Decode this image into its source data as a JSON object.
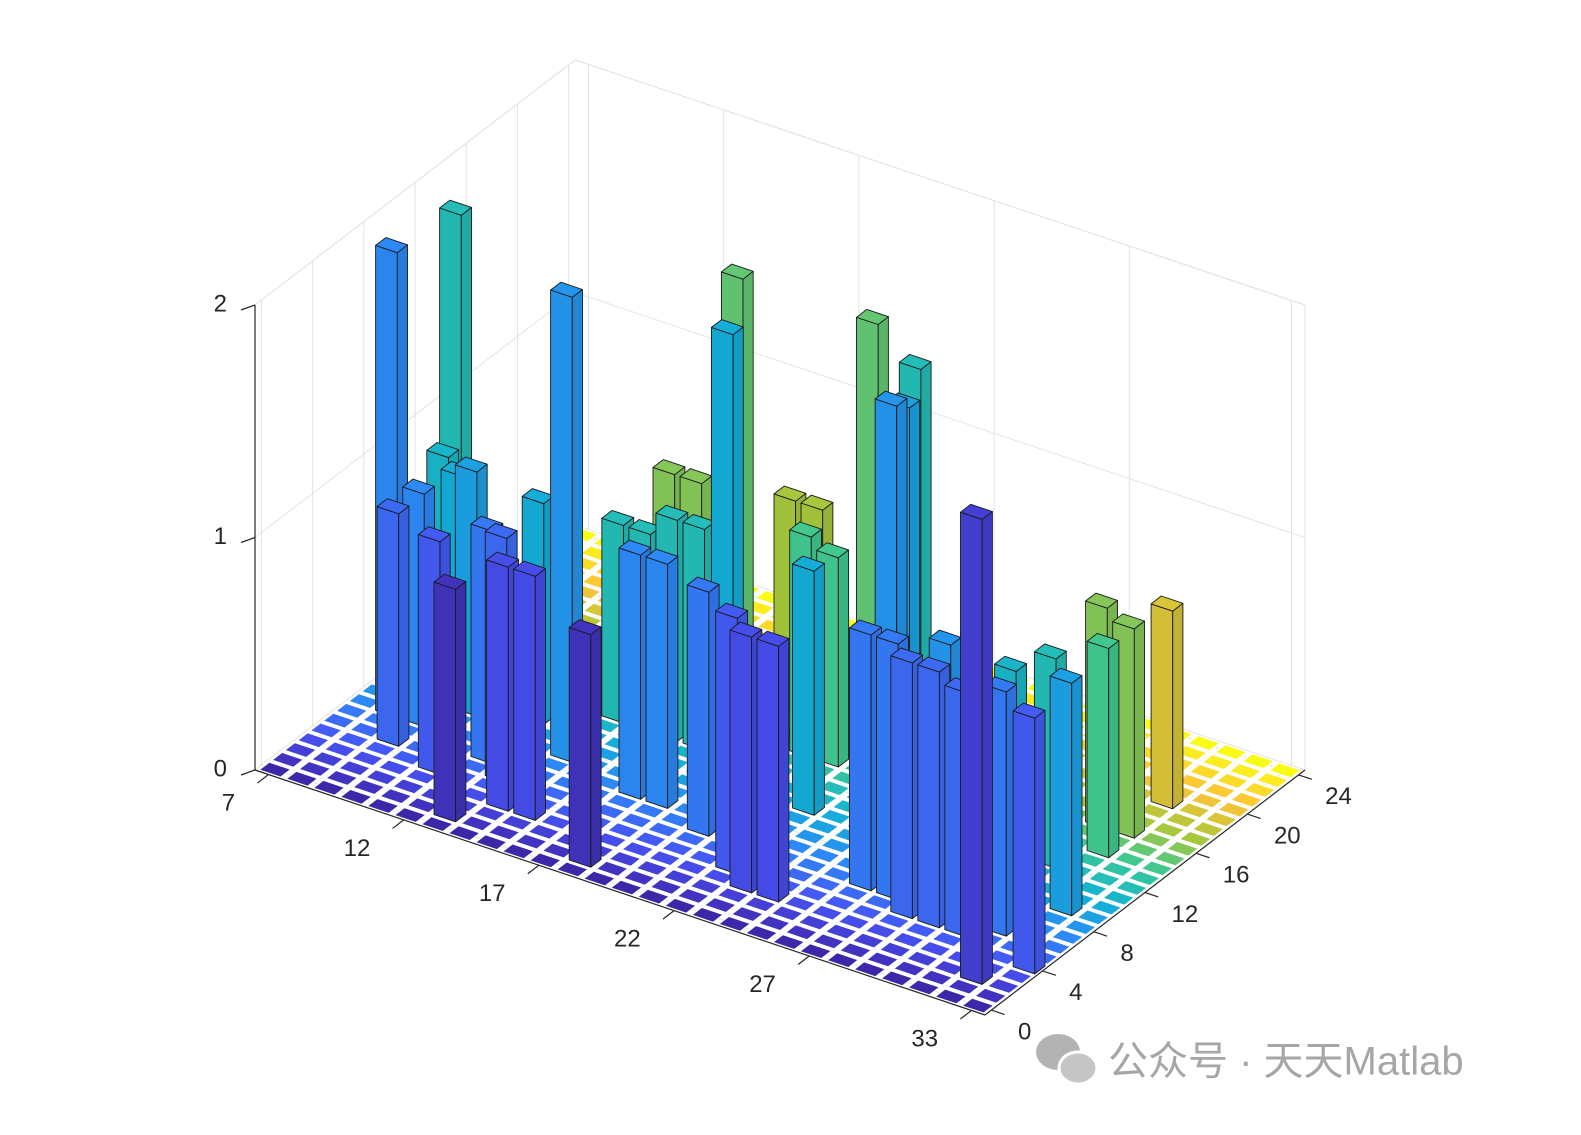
{
  "chart_data": {
    "type": "bar3d",
    "colormap": "parula",
    "x": [
      7,
      8,
      9,
      10,
      11,
      12,
      13,
      14,
      15,
      16,
      17,
      18,
      19,
      20,
      21,
      22,
      23,
      24,
      25,
      26,
      27,
      28,
      29,
      30,
      31,
      32,
      33
    ],
    "y": [
      0,
      1,
      2,
      3,
      4,
      5,
      6,
      7,
      8,
      9,
      10,
      11,
      12,
      13,
      14,
      15,
      16,
      17,
      18,
      19,
      20,
      21,
      22,
      23,
      24
    ],
    "values": [
      [
        0,
        0,
        0,
        0,
        0,
        0,
        0,
        0,
        0,
        0,
        0,
        0,
        0,
        0,
        0,
        0,
        0,
        0,
        0,
        0,
        0,
        0,
        0,
        0,
        0,
        0,
        0
      ],
      [
        0,
        0,
        0,
        0,
        0,
        0,
        1,
        0,
        0,
        0,
        0,
        1,
        0,
        0,
        0,
        0,
        0,
        0,
        0,
        0,
        0,
        0,
        0,
        0,
        0,
        0,
        0
      ],
      [
        0,
        0,
        0,
        0,
        0,
        0,
        0,
        0,
        0,
        0,
        0,
        0,
        0,
        0,
        0,
        0,
        0,
        0,
        0,
        0,
        0,
        0,
        0,
        0,
        0,
        2,
        0
      ],
      [
        0,
        0,
        0,
        0,
        0,
        0,
        0,
        1.05,
        1.05,
        0,
        0,
        0,
        0,
        0,
        0,
        0,
        1.1,
        1.1,
        0,
        0,
        0,
        0,
        0,
        0,
        0,
        0,
        0
      ],
      [
        0,
        0,
        0,
        0,
        1,
        0,
        0,
        0,
        0,
        0,
        0,
        0,
        0,
        0,
        0,
        1.1,
        0,
        0,
        0,
        0,
        0,
        0,
        0,
        0,
        0,
        0,
        1.1
      ],
      [
        0,
        0,
        1,
        0,
        0,
        0,
        1.05,
        0,
        0,
        0,
        0,
        0,
        0,
        0,
        0,
        0,
        0,
        0,
        0,
        0,
        0,
        1.1,
        1.1,
        1.05,
        0,
        0,
        0
      ],
      [
        0,
        0,
        0,
        0,
        0,
        1,
        0,
        0,
        0,
        0,
        0,
        0,
        0,
        1.05,
        0,
        0,
        0,
        0,
        0,
        1.1,
        1.1,
        0,
        0,
        0,
        1.05,
        0,
        0
      ],
      [
        0,
        2,
        1,
        0,
        0,
        0,
        0,
        0,
        0,
        0,
        1.05,
        1.05,
        0,
        0,
        0,
        0,
        0,
        0,
        0,
        0,
        0,
        0,
        0,
        0,
        0,
        0,
        0
      ],
      [
        0,
        0,
        0,
        0,
        0,
        0,
        0,
        2,
        0,
        0,
        0,
        0,
        0,
        0,
        0,
        0,
        0,
        0,
        0,
        2,
        0,
        1.05,
        0,
        0,
        0,
        0,
        0
      ],
      [
        0,
        0,
        0,
        1.05,
        0,
        0,
        0,
        0,
        0,
        0,
        0,
        0,
        0,
        0,
        0,
        0,
        0,
        0,
        0,
        1.95,
        0,
        0,
        0,
        0,
        0,
        1,
        0
      ],
      [
        0,
        0,
        0.95,
        0,
        0,
        0.95,
        0,
        0,
        0,
        0,
        0,
        0,
        1.95,
        0,
        0,
        1.05,
        0,
        0,
        0,
        0,
        0,
        0,
        0,
        0,
        0,
        0,
        0
      ],
      [
        0,
        0.95,
        0,
        0,
        0,
        0,
        0,
        0,
        0,
        0,
        0,
        0,
        0,
        0,
        0,
        0,
        0,
        0,
        0,
        0,
        0,
        0,
        0.85,
        0,
        0,
        0,
        0
      ],
      [
        0,
        1.95,
        0,
        0,
        0,
        0,
        0,
        0.85,
        0.85,
        0.95,
        0.95,
        0,
        0,
        0,
        0,
        0,
        0,
        0,
        1.95,
        0,
        0,
        0,
        0,
        0.9,
        0,
        0,
        0
      ],
      [
        0,
        0,
        0,
        0,
        0,
        0,
        0,
        0,
        0,
        0,
        0,
        0,
        0,
        0,
        0,
        0,
        0,
        0,
        0,
        0,
        0,
        0,
        0,
        0,
        0,
        0,
        0
      ],
      [
        0,
        0,
        0,
        0,
        0,
        0,
        0,
        0,
        0,
        0,
        0,
        0,
        0,
        0.95,
        0.9,
        0,
        0,
        0,
        0,
        0,
        0,
        0,
        0,
        0,
        0.9,
        0,
        0
      ],
      [
        0,
        0,
        0,
        0,
        0,
        0,
        0,
        0,
        0,
        0,
        1.9,
        0,
        0,
        0,
        0,
        1.9,
        0,
        0,
        0,
        0,
        0,
        0,
        0,
        0,
        0,
        0,
        0
      ],
      [
        0,
        0,
        0,
        0,
        0,
        0,
        0,
        0.9,
        0.9,
        0,
        0,
        0,
        0,
        0,
        0,
        0,
        0,
        0,
        0,
        0,
        0,
        0,
        0,
        0.95,
        0.9,
        0,
        0
      ],
      [
        0,
        0,
        0,
        0,
        0,
        0,
        0,
        0,
        0,
        0,
        0,
        0.9,
        0.9,
        0,
        0,
        0,
        0,
        0,
        0,
        0,
        0,
        0,
        0,
        0,
        0,
        0,
        0
      ],
      [
        0,
        0,
        0,
        0,
        0,
        0,
        0,
        0,
        0,
        0,
        0,
        0,
        0,
        0,
        0,
        0,
        0,
        0,
        0,
        0,
        0,
        0,
        0,
        0,
        0,
        0,
        0
      ],
      [
        0,
        0,
        0,
        0,
        0,
        0,
        0,
        0,
        0,
        0,
        0,
        0,
        0,
        0,
        0,
        0,
        0,
        0,
        0,
        0,
        0,
        0,
        0,
        0,
        0.85,
        0,
        0
      ],
      [
        0,
        0,
        0,
        0,
        0,
        0,
        0,
        0,
        0,
        0,
        0,
        0,
        0,
        0,
        0,
        0,
        0,
        0,
        0,
        0,
        0,
        0,
        0,
        0,
        0,
        0,
        0
      ],
      [
        0,
        0,
        0,
        0,
        0,
        0,
        0,
        0,
        0,
        0,
        0,
        0,
        0,
        0,
        0,
        0,
        0,
        0,
        0,
        0,
        0,
        0,
        0,
        0,
        0,
        0,
        0
      ],
      [
        0,
        0,
        0,
        0,
        0,
        0,
        0,
        0,
        0,
        0,
        0,
        0,
        0,
        0,
        0,
        0,
        0,
        0,
        0,
        0,
        0,
        0,
        0,
        0,
        0,
        0,
        0
      ],
      [
        0,
        0,
        0,
        0,
        0,
        0,
        0,
        0,
        0,
        0,
        0,
        0,
        0,
        0,
        0,
        0,
        0,
        0,
        0,
        0,
        0,
        0,
        0,
        0,
        0,
        0,
        0
      ],
      [
        0,
        0,
        0,
        0,
        0,
        0,
        0,
        0,
        0,
        0,
        0,
        0,
        0,
        0,
        0,
        0,
        0,
        0,
        0,
        0,
        0,
        0,
        0,
        0,
        0,
        0,
        0
      ]
    ],
    "xlim": [
      6.5,
      33.5
    ],
    "ylim": [
      -0.5,
      24.5
    ],
    "zlim": [
      0,
      2
    ],
    "xticks": [
      7,
      12,
      17,
      22,
      27,
      33
    ],
    "yticks": [
      0,
      4,
      8,
      12,
      16,
      20,
      24
    ],
    "zticks": [
      0,
      1,
      2
    ],
    "grid": true,
    "watermark": "公众号 · 天天Matlab"
  }
}
